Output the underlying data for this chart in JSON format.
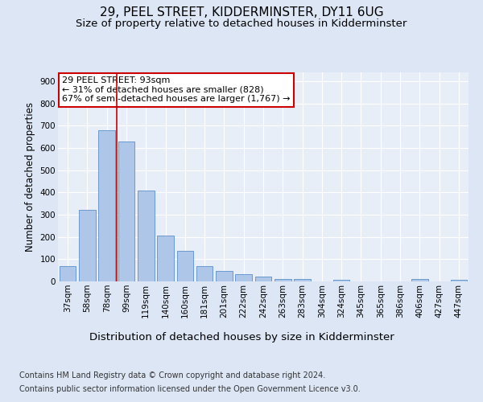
{
  "title": "29, PEEL STREET, KIDDERMINSTER, DY11 6UG",
  "subtitle": "Size of property relative to detached houses in Kidderminster",
  "xlabel": "Distribution of detached houses by size in Kidderminster",
  "ylabel": "Number of detached properties",
  "categories": [
    "37sqm",
    "58sqm",
    "78sqm",
    "99sqm",
    "119sqm",
    "140sqm",
    "160sqm",
    "181sqm",
    "201sqm",
    "222sqm",
    "242sqm",
    "263sqm",
    "283sqm",
    "304sqm",
    "324sqm",
    "345sqm",
    "365sqm",
    "386sqm",
    "406sqm",
    "427sqm",
    "447sqm"
  ],
  "values": [
    70,
    320,
    680,
    630,
    410,
    207,
    137,
    68,
    46,
    32,
    21,
    11,
    10,
    0,
    8,
    0,
    0,
    0,
    10,
    0,
    8
  ],
  "bar_color": "#aec6e8",
  "bar_edge_color": "#5b8fc9",
  "vline_color": "#cc0000",
  "annotation_text": "29 PEEL STREET: 93sqm\n← 31% of detached houses are smaller (828)\n67% of semi-detached houses are larger (1,767) →",
  "annotation_box_color": "#ffffff",
  "annotation_box_edge": "#cc0000",
  "bg_color": "#dce6f5",
  "plot_bg_color": "#e8eef8",
  "grid_color": "#ffffff",
  "footer_line1": "Contains HM Land Registry data © Crown copyright and database right 2024.",
  "footer_line2": "Contains public sector information licensed under the Open Government Licence v3.0.",
  "ylim": [
    0,
    940
  ],
  "title_fontsize": 11,
  "subtitle_fontsize": 9.5,
  "xlabel_fontsize": 9.5,
  "ylabel_fontsize": 8.5,
  "tick_fontsize": 7.5,
  "footer_fontsize": 7,
  "annotation_fontsize": 8
}
